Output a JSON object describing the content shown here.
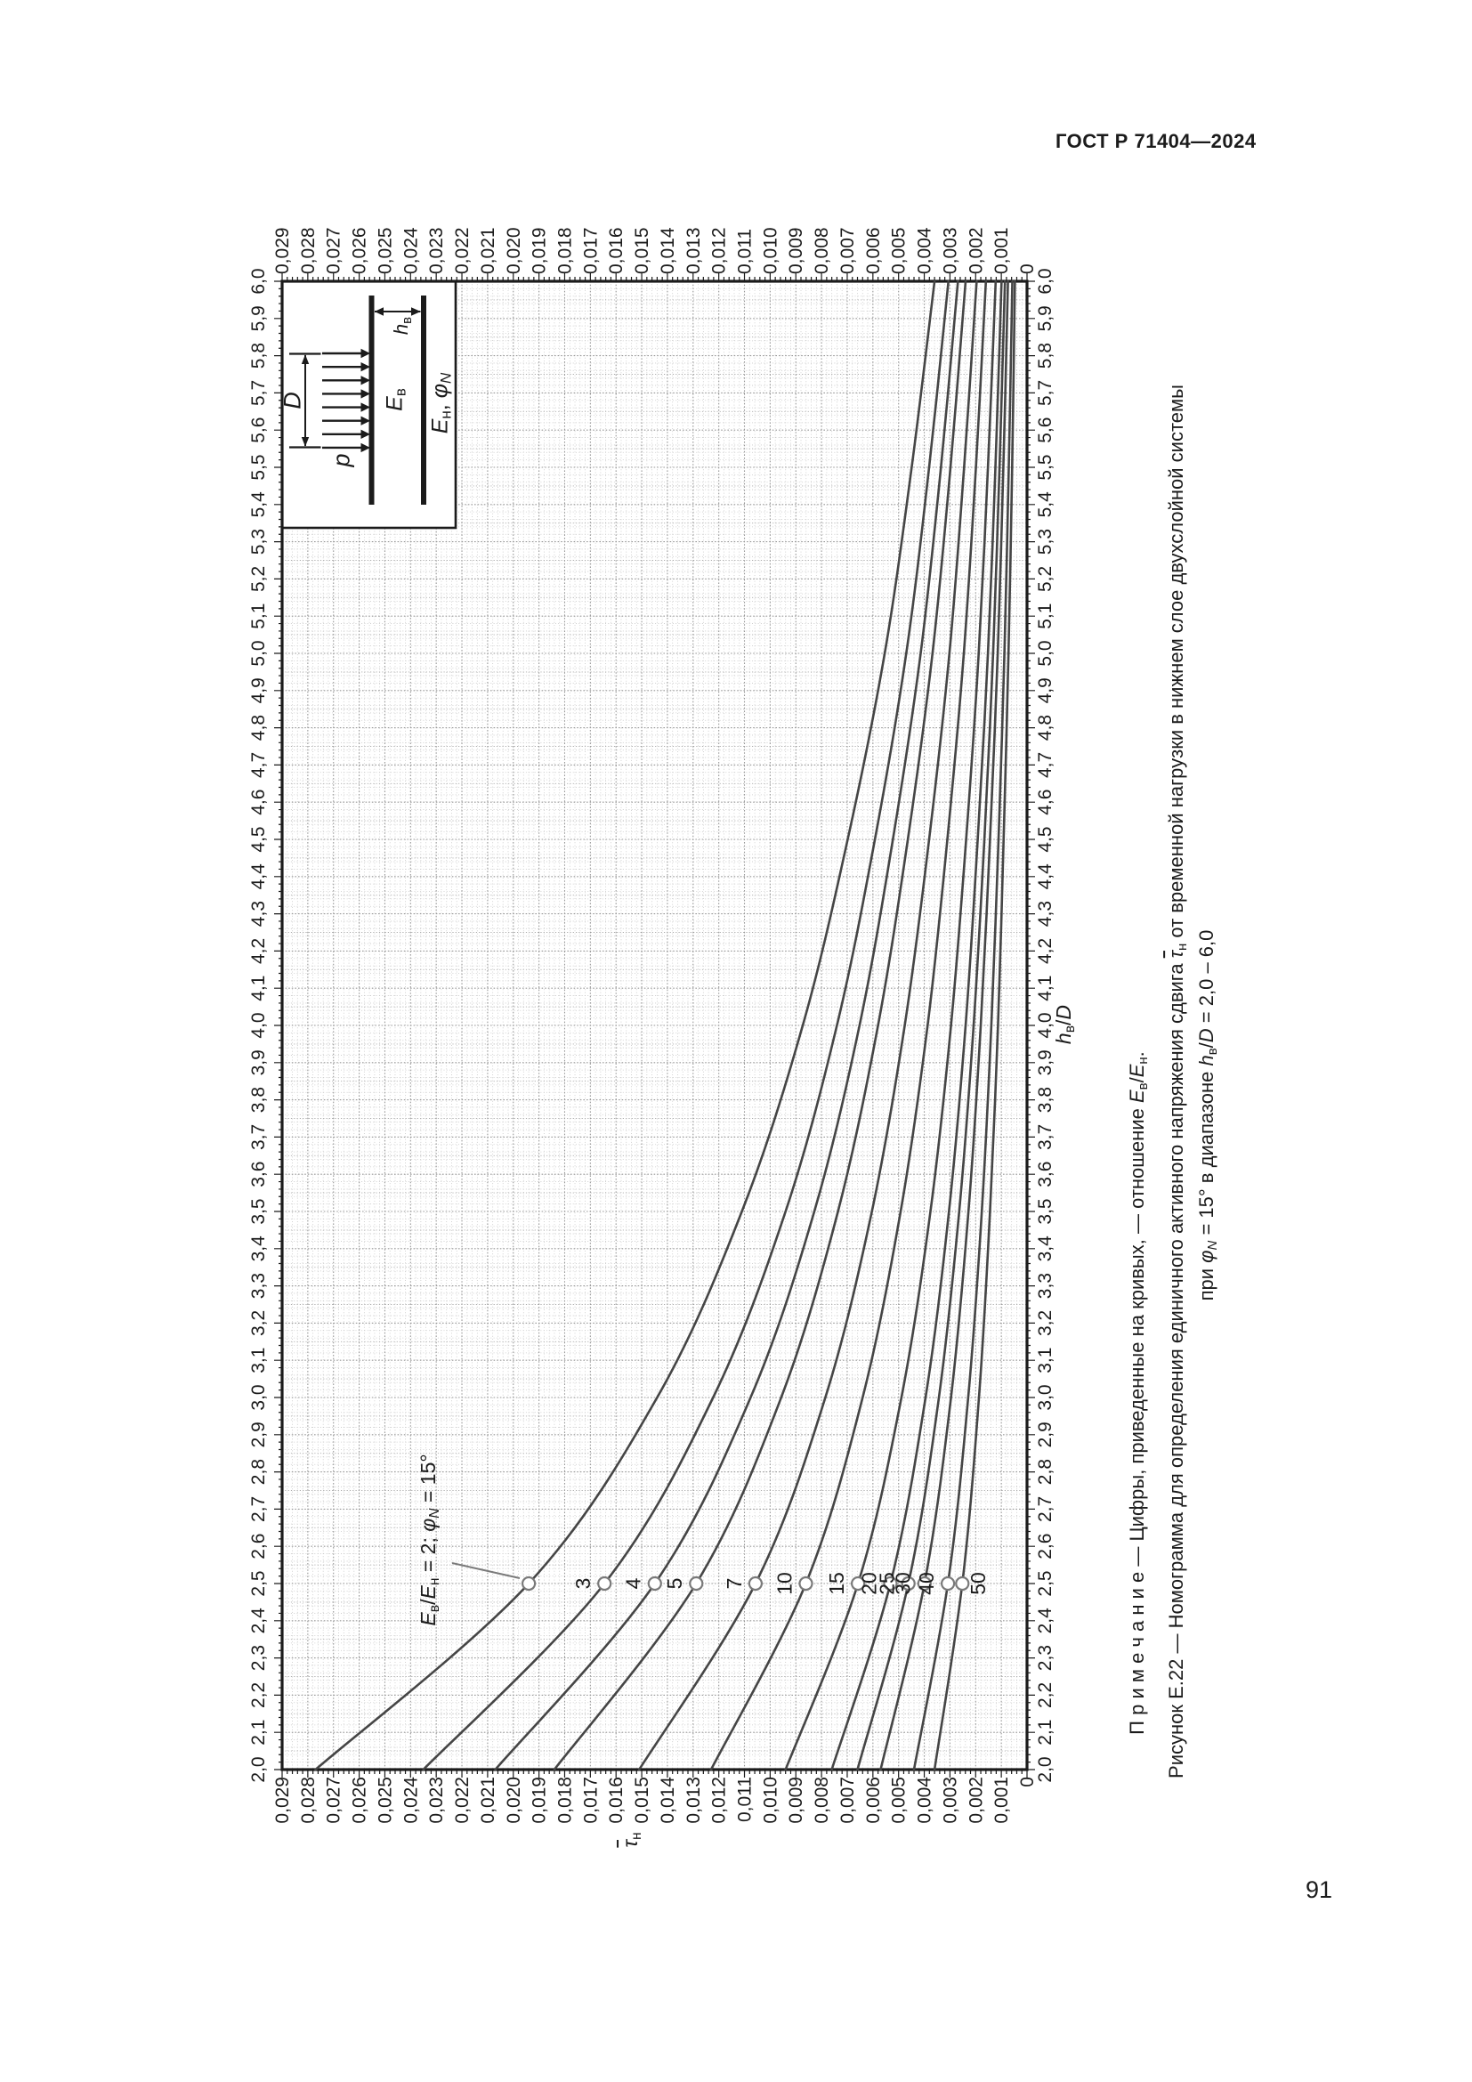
{
  "header": {
    "title": "ГОСТ Р 71404—2024"
  },
  "page_number": "91",
  "colors": {
    "ink": "#1b1b1b",
    "grid_minor": "#c8c8c8",
    "grid_medium": "#ababab",
    "grid_major": "#999999",
    "curve": "#454545",
    "marker": "#7a7a7a"
  },
  "chart_data": {
    "type": "line",
    "orientation": "figure rotated 90° counterclockwise on portrait page",
    "title": "Рисунок Е.22 — Номограмма для определения единичного активного напряжения сдвига τн от временной нагрузки в нижнем слое двухслойной системы при φN = 15° в диапазоне hв/D = 2,0 – 6,0",
    "note": "Примечание — Цифры, приведенные на кривых, — отношение Eв/Eн.",
    "xlabel": "hв/D",
    "ylabel": "τн",
    "xlim": [
      2.0,
      6.0
    ],
    "ylim": [
      0,
      0.029
    ],
    "grid": "fine dotted grid on",
    "legend": "ratio values printed on curves",
    "annotation": "Eв/Eн = 2; φN = 15°",
    "x_tick_labels": [
      "2,0",
      "2,1",
      "2,2",
      "2,3",
      "2,4",
      "2,5",
      "2,6",
      "2,7",
      "2,8",
      "2,9",
      "3,0",
      "3,1",
      "3,2",
      "3,3",
      "3,4",
      "3,5",
      "3,6",
      "3,7",
      "3,8",
      "3,9",
      "4,0",
      "4,1",
      "4,2",
      "4,3",
      "4,4",
      "4,5",
      "4,6",
      "4,7",
      "4,8",
      "4,9",
      "5,0",
      "5,1",
      "5,2",
      "5,3",
      "5,4",
      "5,5",
      "5,6",
      "5,7",
      "5,8",
      "5,9",
      "6,0"
    ],
    "y_tick_labels": [
      "0,029",
      "0,028",
      "0,027",
      "0,026",
      "0,025",
      "0,024",
      "0,023",
      "0,022",
      "0,021",
      "0,020",
      "0,019",
      "0,018",
      "0,017",
      "0,016",
      "0,015",
      "0,014",
      "0,013",
      "0,012",
      "0,011",
      "0,010",
      "0,009",
      "0,008",
      "0,007",
      "0,006",
      "0,005",
      "0,004",
      "0,003",
      "0,002",
      "0,001",
      "0"
    ],
    "x": [
      2.0,
      2.5,
      3.0,
      3.5,
      4.0,
      4.5,
      5.0,
      5.5,
      6.0
    ],
    "series": [
      {
        "name": "2",
        "values": [
          0.0277,
          0.0194,
          0.0144,
          0.0111,
          0.00873,
          0.00698,
          0.00554,
          0.00449,
          0.0036
        ]
      },
      {
        "name": "3",
        "values": [
          0.0235,
          0.01645,
          0.01222,
          0.0094,
          0.0074,
          0.00592,
          0.0047,
          0.00381,
          0.00306
        ]
      },
      {
        "name": "4",
        "values": [
          0.0207,
          0.01449,
          0.01076,
          0.00828,
          0.00652,
          0.00522,
          0.00414,
          0.00335,
          0.00269
        ]
      },
      {
        "name": "5",
        "values": [
          0.0184,
          0.01288,
          0.00957,
          0.00736,
          0.0058,
          0.00464,
          0.00368,
          0.00298,
          0.00239
        ]
      },
      {
        "name": "7",
        "values": [
          0.0151,
          0.01057,
          0.00785,
          0.00604,
          0.00476,
          0.00381,
          0.00302,
          0.00245,
          0.00196
        ]
      },
      {
        "name": "10",
        "values": [
          0.0123,
          0.00861,
          0.0064,
          0.00492,
          0.00387,
          0.0031,
          0.00246,
          0.00199,
          0.0016
        ]
      },
      {
        "name": "15",
        "values": [
          0.0094,
          0.00658,
          0.00489,
          0.00376,
          0.00296,
          0.00237,
          0.00188,
          0.00152,
          0.00122
        ]
      },
      {
        "name": "20",
        "values": [
          0.0076,
          0.00532,
          0.00395,
          0.00304,
          0.00239,
          0.00192,
          0.00152,
          0.00123,
          0.00099
        ]
      },
      {
        "name": "25",
        "values": [
          0.0066,
          0.00462,
          0.00343,
          0.00264,
          0.00208,
          0.00166,
          0.00132,
          0.00107,
          0.00086
        ]
      },
      {
        "name": "30",
        "values": [
          0.0057,
          0.00399,
          0.00296,
          0.00228,
          0.0018,
          0.00144,
          0.00114,
          0.00092,
          0.00074
        ]
      },
      {
        "name": "40",
        "values": [
          0.0044,
          0.00308,
          0.00229,
          0.00176,
          0.00139,
          0.00111,
          0.00088,
          0.00071,
          0.00057
        ]
      },
      {
        "name": "50",
        "values": [
          0.0036,
          0.00252,
          0.00187,
          0.00144,
          0.00113,
          0.00091,
          0.00072,
          0.00058,
          0.00047
        ]
      }
    ],
    "marker_x": 2.5
  },
  "rich": {
    "note": [
      {
        "t": "П р и м е ч а н и е — Цифры, приведенные на кривых, — отношение "
      },
      {
        "t": "E",
        "f": "i"
      },
      {
        "t": "в",
        "f": "sub"
      },
      {
        "t": "/"
      },
      {
        "t": "E",
        "f": "i"
      },
      {
        "t": "н",
        "f": "sub"
      },
      {
        "t": "."
      }
    ],
    "caption1": [
      {
        "t": "Рисунок Е.22 — Номограмма для определения единичного активного напряжения сдвига "
      },
      {
        "t": "τ",
        "f": "bari"
      },
      {
        "t": "н",
        "f": "sub"
      },
      {
        "t": " от временной нагрузки в нижнем слое двухслойной системы"
      }
    ],
    "caption2": [
      {
        "t": "при "
      },
      {
        "t": "φ",
        "f": "i"
      },
      {
        "t": "N",
        "f": "subi"
      },
      {
        "t": " = 15° в диапазоне "
      },
      {
        "t": "h",
        "f": "i"
      },
      {
        "t": "в",
        "f": "sub"
      },
      {
        "t": "/"
      },
      {
        "t": "D",
        "f": "i"
      },
      {
        "t": " = 2,0 – 6,0"
      }
    ],
    "annotation": [
      {
        "t": "E",
        "f": "i"
      },
      {
        "t": "в",
        "f": "sub"
      },
      {
        "t": "/"
      },
      {
        "t": "E",
        "f": "i"
      },
      {
        "t": "н",
        "f": "sub"
      },
      {
        "t": " = 2; "
      },
      {
        "t": "φ",
        "f": "i"
      },
      {
        "t": "N",
        "f": "subi"
      },
      {
        "t": " = 15°"
      }
    ],
    "x_title": [
      {
        "t": "h",
        "f": "i"
      },
      {
        "t": "в",
        "f": "sub"
      },
      {
        "t": "/"
      },
      {
        "t": "D",
        "f": "i"
      }
    ],
    "y_title": [
      {
        "t": "τ",
        "f": "bari"
      },
      {
        "t": "н",
        "f": "sub"
      }
    ],
    "inset": {
      "p": [
        {
          "t": "p",
          "f": "i"
        }
      ],
      "D": [
        {
          "t": "D",
          "f": "i"
        }
      ],
      "Ev": [
        {
          "t": "E",
          "f": "i"
        },
        {
          "t": "в",
          "f": "sub"
        }
      ],
      "hv": [
        {
          "t": "h",
          "f": "i"
        },
        {
          "t": "в",
          "f": "sub"
        }
      ],
      "En": [
        {
          "t": "E",
          "f": "i"
        },
        {
          "t": "н",
          "f": "sub"
        },
        {
          "t": ", "
        },
        {
          "t": "φ",
          "f": "i"
        },
        {
          "t": "N",
          "f": "subi"
        }
      ]
    }
  }
}
